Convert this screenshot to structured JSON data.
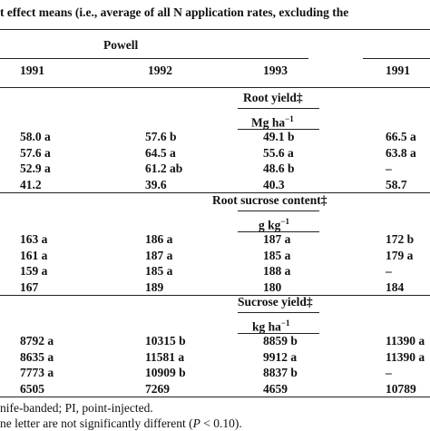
{
  "header": {
    "title": "t effect means (i.e., average of all N application rates, excluding the"
  },
  "table": {
    "group": "Powell",
    "years": [
      "1991",
      "1992",
      "1993",
      "1991"
    ],
    "sections": [
      {
        "title": "Root yield‡",
        "unit": "Mg ha",
        "unit_exp": "−1",
        "rows": [
          [
            "58.0 a",
            "57.6 b",
            "49.1 b",
            "66.5 a"
          ],
          [
            "57.6 a",
            "64.5 a",
            "55.6 a",
            "63.8 a"
          ],
          [
            "52.9 a",
            "61.2 ab",
            "48.6 b",
            "–"
          ],
          [
            "41.2",
            "39.6",
            "40.3",
            "58.7"
          ]
        ]
      },
      {
        "title": "Root sucrose content‡",
        "unit": "g kg",
        "unit_exp": "−1",
        "rows": [
          [
            "163 a",
            "186 a",
            "187 a",
            "172 b"
          ],
          [
            "161 a",
            "187 a",
            "185 a",
            "179 a"
          ],
          [
            "159 a",
            "185 a",
            "188 a",
            "–"
          ],
          [
            "167",
            "189",
            "180",
            "184"
          ]
        ]
      },
      {
        "title": "Sucrose yield‡",
        "unit": "kg ha",
        "unit_exp": "−1",
        "rows": [
          [
            "8792 a",
            "10315 b",
            "8859 b",
            "11390 a"
          ],
          [
            "8635 a",
            "11581 a",
            "9912 a",
            "11390 a"
          ],
          [
            "7773 a",
            "10909 b",
            "8837 b",
            "–"
          ],
          [
            "6505",
            "7269",
            "4659",
            "10789"
          ]
        ]
      }
    ]
  },
  "footnotes": [
    {
      "text": "nife-banded; PI, point-injected."
    },
    {
      "before": "ne letter are not significantly different (",
      "italic": "P",
      "after": " < 0.10)."
    }
  ]
}
